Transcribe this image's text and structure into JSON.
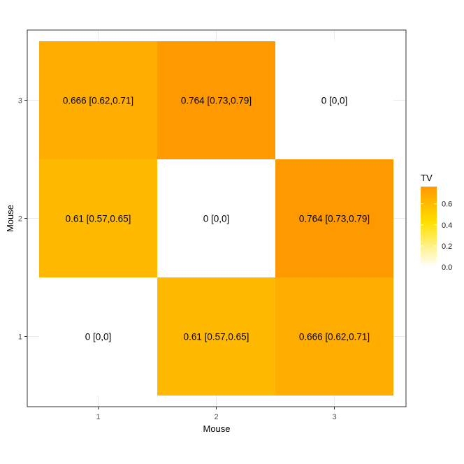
{
  "chart_data": {
    "type": "heatmap",
    "xlabel": "Mouse",
    "ylabel": "Mouse",
    "x_categories": [
      "1",
      "2",
      "3"
    ],
    "y_categories": [
      "1",
      "2",
      "3"
    ],
    "grid": true,
    "legend": {
      "title": "TV",
      "position": "right",
      "ticks": [
        "0.0",
        "0.2",
        "0.4",
        "0.6"
      ],
      "tick_values": [
        0.0,
        0.2,
        0.4,
        0.6
      ],
      "range": [
        0,
        0.764
      ],
      "colors": {
        "low": "#ffffff",
        "mid": "#ffe000",
        "high": "#ff9900"
      }
    },
    "cells": [
      {
        "x": "1",
        "y": "3",
        "value": 0.666,
        "label": "0.666 [0.62,0.71]"
      },
      {
        "x": "2",
        "y": "3",
        "value": 0.764,
        "label": "0.764 [0.73,0.79]"
      },
      {
        "x": "3",
        "y": "3",
        "value": 0,
        "label": "0 [0,0]"
      },
      {
        "x": "1",
        "y": "2",
        "value": 0.61,
        "label": "0.61 [0.57,0.65]"
      },
      {
        "x": "2",
        "y": "2",
        "value": 0,
        "label": "0 [0,0]"
      },
      {
        "x": "3",
        "y": "2",
        "value": 0.764,
        "label": "0.764 [0.73,0.79]"
      },
      {
        "x": "1",
        "y": "1",
        "value": 0,
        "label": "0 [0,0]"
      },
      {
        "x": "2",
        "y": "1",
        "value": 0.61,
        "label": "0.61 [0.57,0.65]"
      },
      {
        "x": "3",
        "y": "1",
        "value": 0.666,
        "label": "0.666 [0.62,0.71]"
      }
    ]
  }
}
